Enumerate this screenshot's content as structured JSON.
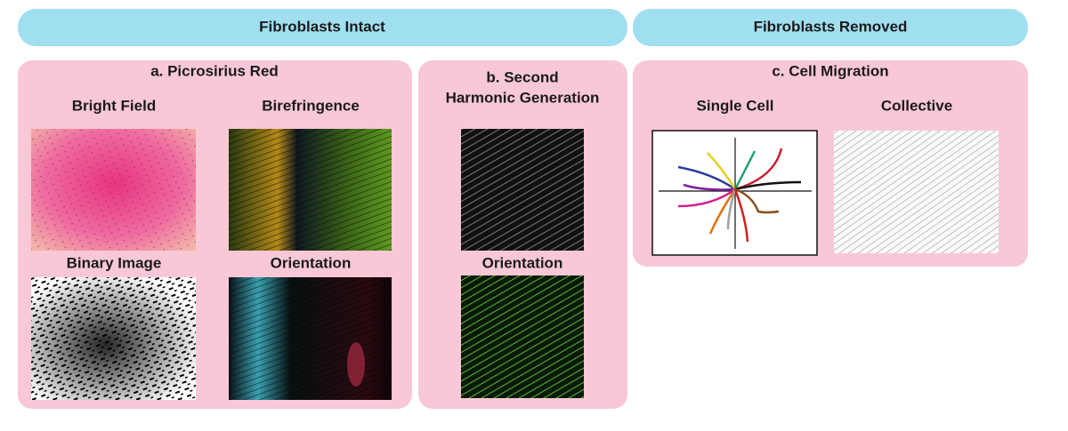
{
  "header": {
    "left": "Fibroblasts Intact",
    "right": "Fibroblasts Removed"
  },
  "panels": [
    {
      "title": "a. Picrosirius Red",
      "labels": [
        "Bright Field",
        "Birefringence",
        "Binary Image",
        "Orientation"
      ]
    },
    {
      "title_lines": [
        "b. Second",
        "Harmonic Generation"
      ],
      "labels": [
        "Orientation"
      ]
    },
    {
      "title": "c. Cell Migration",
      "labels": [
        "Single Cell",
        "Collective"
      ]
    }
  ]
}
